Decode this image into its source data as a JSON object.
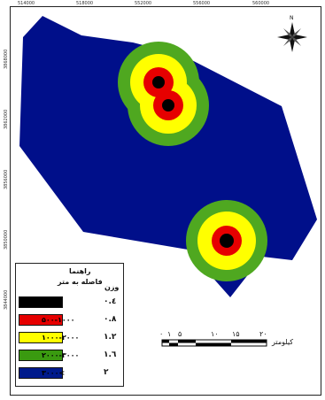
{
  "map": {
    "grid_x_labels": [
      "514000",
      "518000",
      "552000",
      "556000",
      "560000"
    ],
    "grid_y_labels": [
      "3868000",
      "3862000",
      "3856000",
      "3850000",
      "3844000"
    ],
    "zone_colors": {
      "black": "#000000",
      "red": "#e60000",
      "yellow": "#ffff00",
      "green": "#4fa820",
      "blue": "#000f8a"
    }
  },
  "legend": {
    "title": "راهنما",
    "subtitle": "فاصله به متر",
    "weight_header": "وزن",
    "items": [
      {
        "range": "۰-۵۰۰",
        "weight": "۰.٤",
        "color": "#000000"
      },
      {
        "range": "۵۰۰-۱۰۰۰",
        "weight": "۰.۸",
        "color": "#e60000"
      },
      {
        "range": "۱۰۰۰-۲۰۰۰",
        "weight": "۱.۲",
        "color": "#ffff00"
      },
      {
        "range": "۲۰۰۰-۳۰۰۰",
        "weight": "۱.٦",
        "color": "#3a9a10"
      },
      {
        "range": "۳۰۰۰<",
        "weight": "۲",
        "color": "#001a8c"
      }
    ]
  },
  "scale_bar": {
    "labels": [
      "۰",
      "۱",
      "۵",
      "۱۰",
      "۱۵",
      "۲۰"
    ],
    "unit": "کیلومتر"
  },
  "north_arrow": {
    "label": "N"
  }
}
